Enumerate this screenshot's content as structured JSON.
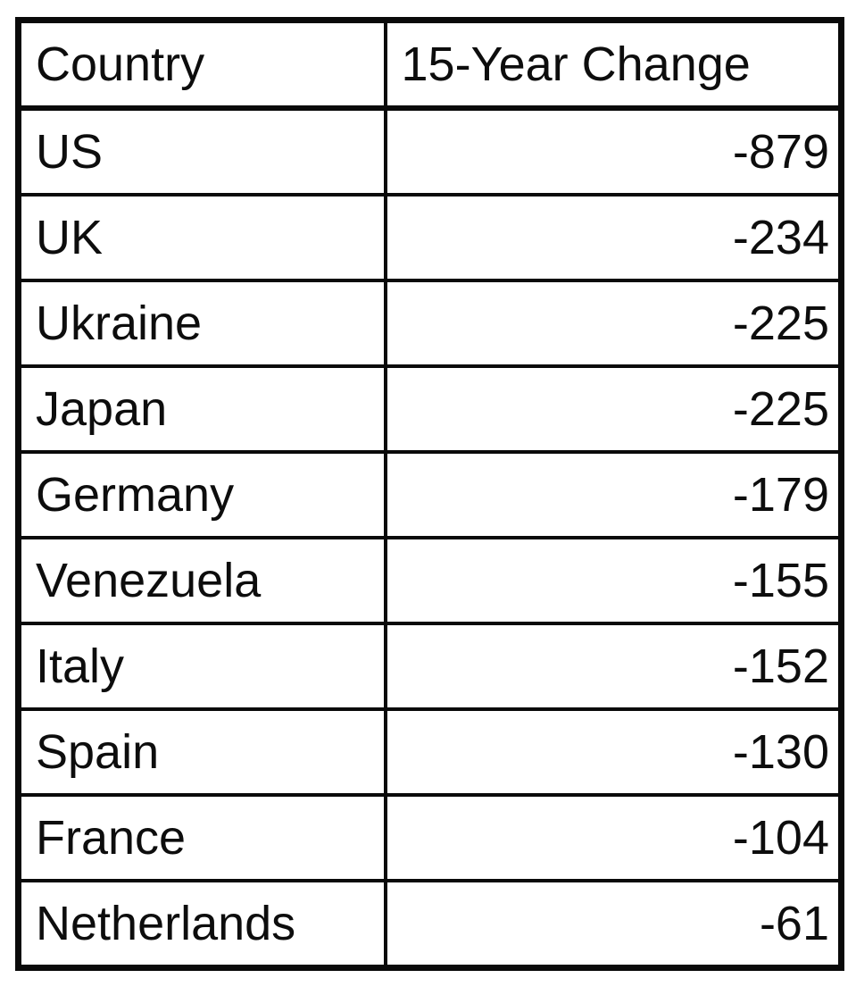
{
  "chart_data": {
    "type": "table",
    "title": "",
    "columns": [
      "Country",
      "15-Year Change"
    ],
    "rows": [
      {
        "country": "US",
        "change": -879
      },
      {
        "country": "UK",
        "change": -234
      },
      {
        "country": "Ukraine",
        "change": -225
      },
      {
        "country": "Japan",
        "change": -225
      },
      {
        "country": "Germany",
        "change": -179
      },
      {
        "country": "Venezuela",
        "change": -155
      },
      {
        "country": "Italy",
        "change": -152
      },
      {
        "country": "Spain",
        "change": -130
      },
      {
        "country": "France",
        "change": -104
      },
      {
        "country": "Netherlands",
        "change": -61
      }
    ]
  },
  "table": {
    "headers": {
      "country": "Country",
      "change": "15-Year Change"
    },
    "rows": [
      {
        "country": "US",
        "change": "-879"
      },
      {
        "country": "UK",
        "change": "-234"
      },
      {
        "country": "Ukraine",
        "change": "-225"
      },
      {
        "country": "Japan",
        "change": "-225"
      },
      {
        "country": "Germany",
        "change": "-179"
      },
      {
        "country": "Venezuela",
        "change": "-155"
      },
      {
        "country": "Italy",
        "change": "-152"
      },
      {
        "country": "Spain",
        "change": "-130"
      },
      {
        "country": "France",
        "change": "-104"
      },
      {
        "country": "Netherlands",
        "change": "-61"
      }
    ]
  },
  "colors": {
    "border": "#0a0a0a",
    "text": "#0d0d0d",
    "background": "#ffffff"
  }
}
